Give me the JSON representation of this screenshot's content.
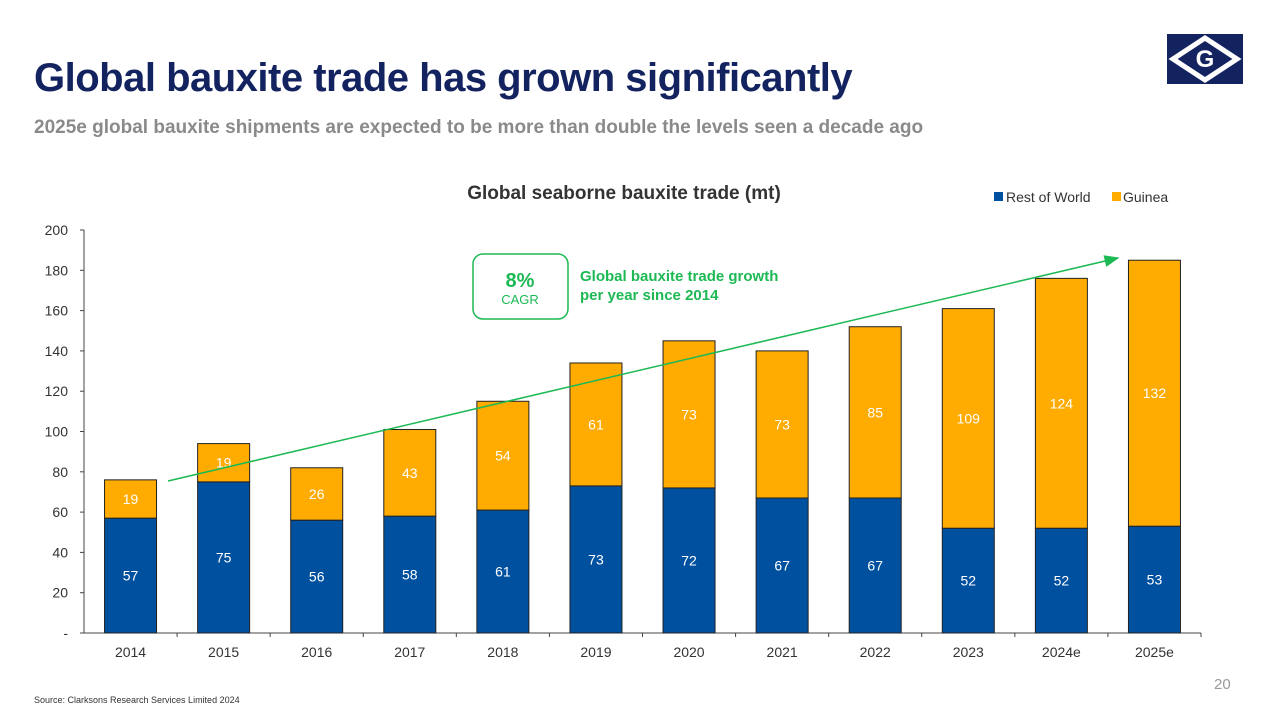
{
  "header": {
    "title": "Global bauxite trade has grown significantly",
    "subtitle": "2025e global bauxite shipments are expected to be more than double the levels seen a decade ago",
    "logo_text": "G"
  },
  "footer": {
    "source": "Source: Clarksons Research Services Limited 2024",
    "page_number": "20"
  },
  "annotation": {
    "cagr_value": "8%",
    "cagr_label": "CAGR",
    "text_line1": "Global bauxite trade growth",
    "text_line2": "per year since 2014"
  },
  "colors": {
    "row": "#0050a0",
    "guinea": "#ffab00",
    "accent": "#1db954",
    "navy": "#13235f"
  },
  "chart_data": {
    "type": "bar",
    "stacked": true,
    "title": "Global seaborne bauxite trade (mt)",
    "categories": [
      "2014",
      "2015",
      "2016",
      "2017",
      "2018",
      "2019",
      "2020",
      "2021",
      "2022",
      "2023",
      "2024e",
      "2025e"
    ],
    "series": [
      {
        "name": "Rest of World",
        "values": [
          57,
          75,
          56,
          58,
          61,
          73,
          72,
          67,
          67,
          52,
          52,
          53
        ]
      },
      {
        "name": "Guinea",
        "values": [
          19,
          19,
          26,
          43,
          54,
          61,
          73,
          73,
          85,
          109,
          124,
          132
        ]
      }
    ],
    "ylim": [
      0,
      200
    ],
    "yticks": [
      "-",
      "20",
      "40",
      "60",
      "80",
      "100",
      "120",
      "140",
      "160",
      "180",
      "200"
    ],
    "legend": "top-right"
  }
}
